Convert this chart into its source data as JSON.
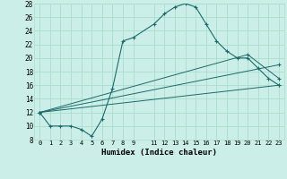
{
  "title": "",
  "xlabel": "Humidex (Indice chaleur)",
  "bg_color": "#cceee8",
  "grid_color": "#aaddcc",
  "line_color": "#1a6b6b",
  "xlim": [
    -0.5,
    23.5
  ],
  "ylim": [
    8,
    28
  ],
  "yticks": [
    8,
    10,
    12,
    14,
    16,
    18,
    20,
    22,
    24,
    26,
    28
  ],
  "xtick_labels": [
    "0",
    "1",
    "2",
    "3",
    "4",
    "5",
    "6",
    "7",
    "8",
    "9",
    "11",
    "12",
    "13",
    "14",
    "15",
    "16",
    "17",
    "18",
    "19",
    "20",
    "21",
    "22",
    "23"
  ],
  "xtick_pos": [
    0,
    1,
    2,
    3,
    4,
    5,
    6,
    7,
    8,
    9,
    11,
    12,
    13,
    14,
    15,
    16,
    17,
    18,
    19,
    20,
    21,
    22,
    23
  ],
  "line1_x": [
    0,
    1,
    2,
    3,
    4,
    5,
    6,
    7,
    8,
    9,
    11,
    12,
    13,
    14,
    15,
    16,
    17,
    18,
    19,
    20,
    21,
    22,
    23
  ],
  "line1_y": [
    12,
    10,
    10,
    10,
    9.5,
    8.5,
    11,
    15.5,
    22.5,
    23,
    25,
    26.5,
    27.5,
    28,
    27.5,
    25,
    22.5,
    21,
    20,
    20,
    18.5,
    17,
    16
  ],
  "line2_x": [
    0,
    23
  ],
  "line2_y": [
    12,
    16
  ],
  "line3_x": [
    0,
    23
  ],
  "line3_y": [
    12,
    19
  ],
  "line4_x": [
    0,
    20,
    23
  ],
  "line4_y": [
    12,
    20.5,
    17
  ],
  "marker": "+"
}
